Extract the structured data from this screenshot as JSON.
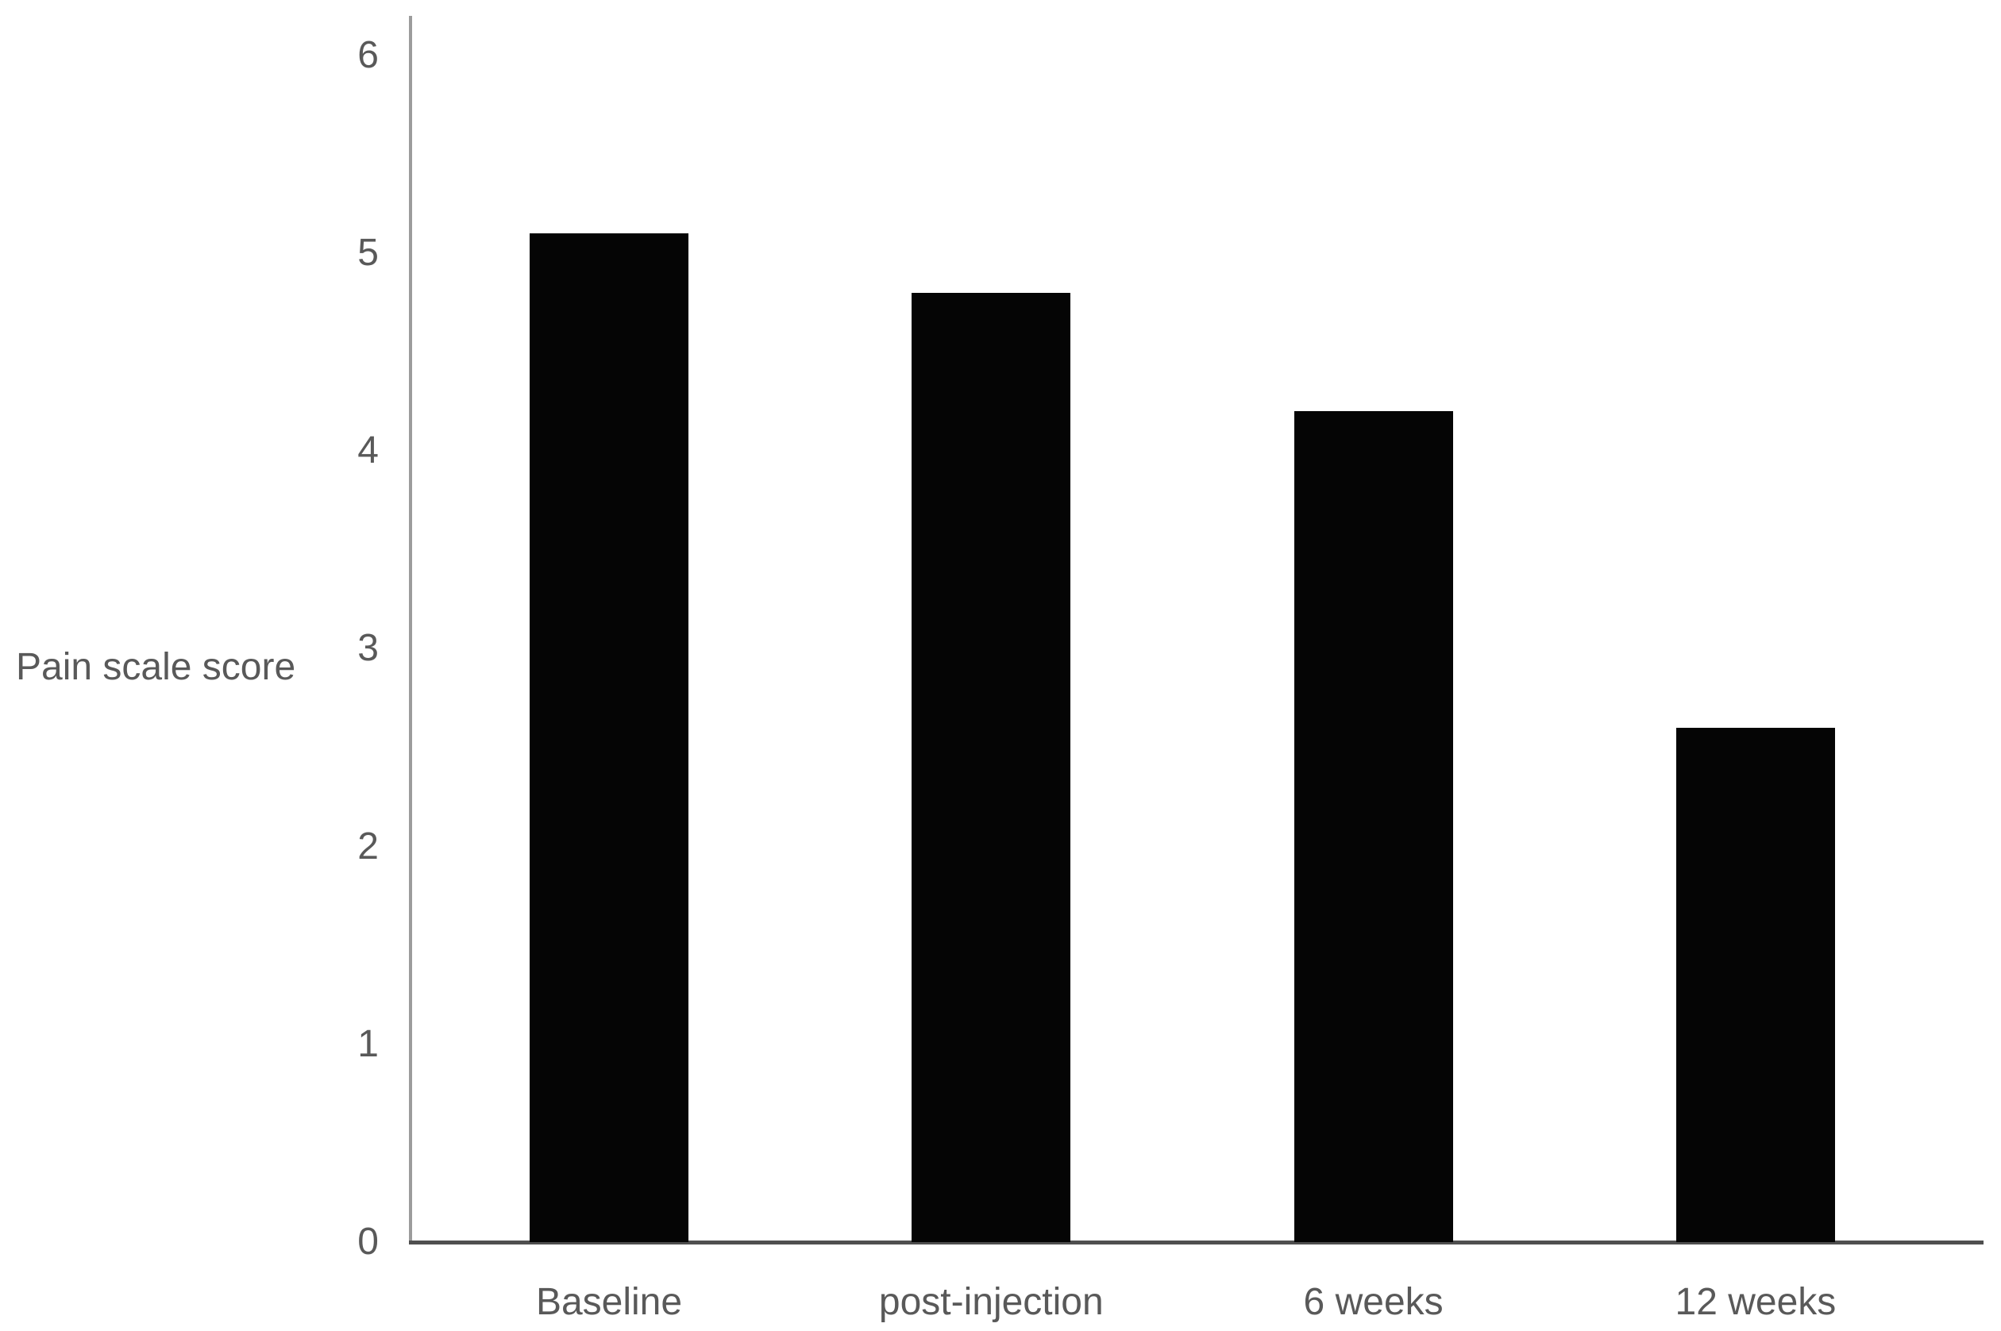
{
  "chart_data": {
    "type": "bar",
    "title": "",
    "ylabel": "Pain scale score",
    "categories": [
      "Baseline",
      "post-injection",
      "6 weeks",
      "12 weeks"
    ],
    "values": [
      5.1,
      4.8,
      4.2,
      2.6
    ],
    "y_ticks": [
      0,
      1,
      2,
      3,
      4,
      5,
      6
    ],
    "ylim": [
      0,
      6
    ],
    "grid": false,
    "legend": null,
    "colors": {
      "bar": "#050505",
      "text": "#595959",
      "y_axis_line": "#9c9c9c",
      "x_axis_line": "#4f4f4f",
      "background": "#ffffff"
    }
  }
}
